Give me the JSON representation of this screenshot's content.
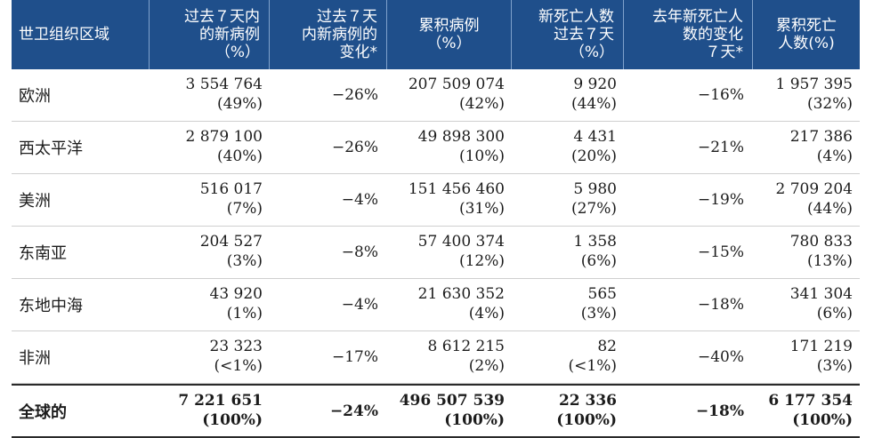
{
  "headers": [
    "世卫组织区域",
    "过去７天内\n的新病例\n（%）",
    "过去７天\n内新病例的\n变化*",
    "累积病例\n（%）",
    "新死亡人数\n过去７天\n（%）",
    "去年新死亡人\n数的变化\n７天*",
    "累积死亡\n人数(%)"
  ],
  "rows": [
    {
      "region": "欧洲",
      "new_cases": "3 554 764",
      "new_cases_pct": "(49%)",
      "change": "−26%",
      "cum_cases": "207 509 074",
      "cum_cases_pct": "(42%)",
      "new_deaths": "9 920",
      "new_deaths_pct": "(44%)",
      "death_change": "−16%",
      "cum_deaths": "1 957 395",
      "cum_deaths_pct": "(32%)"
    },
    {
      "region": "西太平洋",
      "new_cases": "2 879 100",
      "new_cases_pct": "(40%)",
      "change": "−26%",
      "cum_cases": "49 898 300",
      "cum_cases_pct": "(10%)",
      "new_deaths": "4 431",
      "new_deaths_pct": "(20%)",
      "death_change": "−21%",
      "cum_deaths": "217 386",
      "cum_deaths_pct": "(4%)"
    },
    {
      "region": "美洲",
      "new_cases": "516 017",
      "new_cases_pct": "(7%)",
      "change": "−4%",
      "cum_cases": "151 456 460",
      "cum_cases_pct": "(31%)",
      "new_deaths": "5 980",
      "new_deaths_pct": "(27%)",
      "death_change": "−19%",
      "cum_deaths": "2 709 204",
      "cum_deaths_pct": "(44%)"
    },
    {
      "region": "东南亚",
      "new_cases": "204 527",
      "new_cases_pct": "(3%)",
      "change": "−8%",
      "cum_cases": "57 400 374",
      "cum_cases_pct": "(12%)",
      "new_deaths": "1 358",
      "new_deaths_pct": "(6%)",
      "death_change": "−15%",
      "cum_deaths": "780 833",
      "cum_deaths_pct": "(13%)"
    },
    {
      "region": "东地中海",
      "new_cases": "43 920",
      "new_cases_pct": "(1%)",
      "change": "−4%",
      "cum_cases": "21 630 352",
      "cum_cases_pct": "(4%)",
      "new_deaths": "565",
      "new_deaths_pct": "(3%)",
      "death_change": "−18%",
      "cum_deaths": "341 304",
      "cum_deaths_pct": "(6%)"
    },
    {
      "region": "非洲",
      "new_cases": "23 323",
      "new_cases_pct": "(<1%)",
      "change": "−17%",
      "cum_cases": "8 612 215",
      "cum_cases_pct": "(2%)",
      "new_deaths": "82",
      "new_deaths_pct": "(<1%)",
      "death_change": "−40%",
      "cum_deaths": "171 219",
      "cum_deaths_pct": "(3%)"
    }
  ],
  "total": {
    "region": "全球的",
    "new_cases": "7 221 651",
    "new_cases_pct": "(100%)",
    "change": "−24%",
    "cum_cases": "496 507 539",
    "cum_cases_pct": "(100%)",
    "new_deaths": "22 336",
    "new_deaths_pct": "(100%)",
    "death_change": "−18%",
    "cum_deaths": "6 177 354",
    "cum_deaths_pct": "(100%)"
  },
  "colors": {
    "header_bg": "#1f4f8b",
    "header_text": "#ffffff",
    "divider": "#7fa2cc"
  }
}
